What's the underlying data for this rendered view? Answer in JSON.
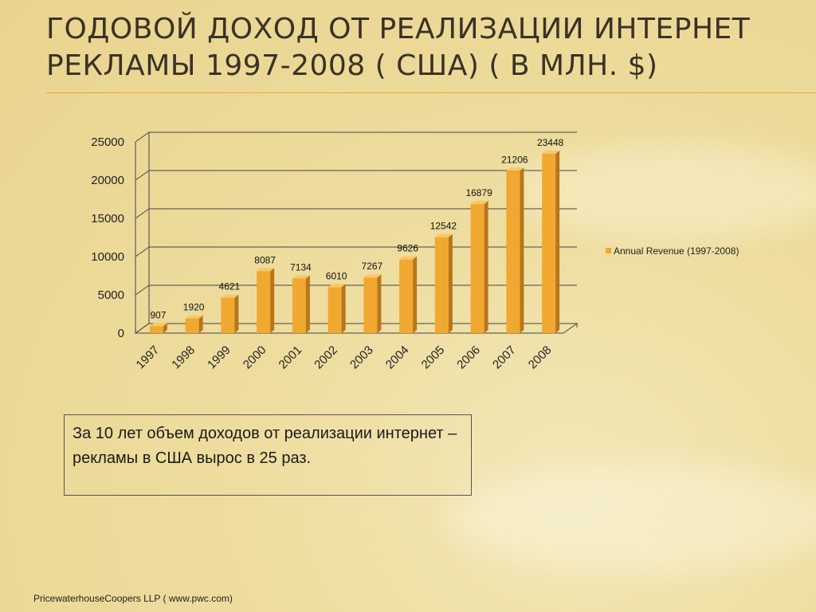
{
  "slide": {
    "title_line1": "Годовой доход от реализации интернет",
    "title_line2": "рекламы 1997-2008 ( США) ( в млн. $)",
    "note": "За 10 лет объем доходов от реализации интернет – рекламы в США вырос  в 25 раз.",
    "footer": "PricewaterhouseCoopers LLP ( www.pwc.com)"
  },
  "chart_data": {
    "type": "bar",
    "title": "",
    "xlabel": "",
    "ylabel": "",
    "categories": [
      "1997",
      "1998",
      "1999",
      "2000",
      "2001",
      "2002",
      "2003",
      "2004",
      "2005",
      "2006",
      "2007",
      "2008"
    ],
    "series": [
      {
        "name": "Annual Revenue (1997-2008)",
        "values": [
          907,
          1920,
          4621,
          8087,
          7134,
          6010,
          7267,
          9626,
          12542,
          16879,
          21206,
          23448
        ]
      }
    ],
    "ylim": [
      0,
      25000
    ],
    "yticks": [
      0,
      5000,
      10000,
      15000,
      20000,
      25000
    ],
    "grid": true,
    "legend": "right",
    "data_labels": true,
    "colors": {
      "bar_front": "#f0a830",
      "bar_side": "#b8761a",
      "bar_top": "#f7c868",
      "grid": "#444444"
    }
  }
}
